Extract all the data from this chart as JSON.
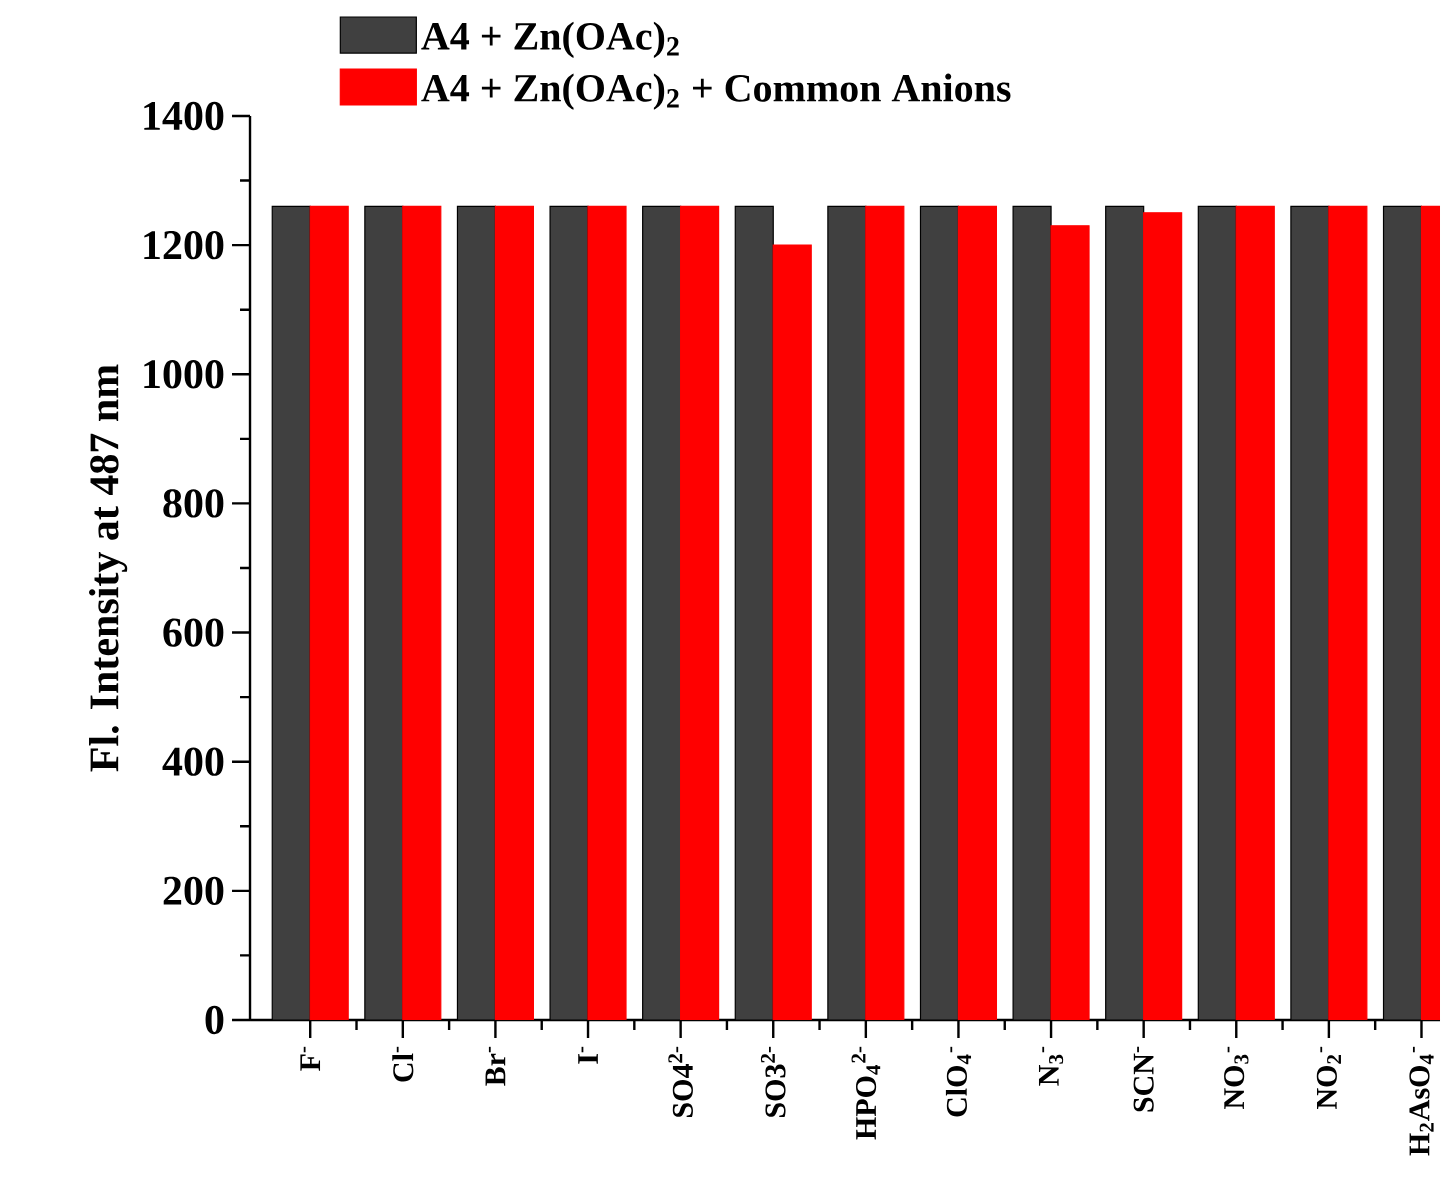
{
  "chart_data": {
    "type": "bar",
    "ylabel": "Fl. Intensity at 487 nm",
    "categories": [
      "F$^{-}$",
      "Cl$^{-}$",
      "Br$^{-}$",
      "I$^{-}$",
      "SO4$^{2-}$",
      "SO3$^{2-}$",
      "HPO$_{4}$$^{2-}$",
      "ClO$_{4}$$^{-}$",
      "N$_{3}$$^{-}$",
      "SCN$^{-}$",
      "NO$_{3}$$^{-}$",
      "NO$_{2}$$^{-}$",
      "H$_{2}$AsO$_{4}$$^{-}$"
    ],
    "series": [
      {
        "name": "A4 + Zn(OAc)$_{2}$",
        "color": "#404040",
        "values": [
          1260,
          1260,
          1260,
          1260,
          1260,
          1260,
          1260,
          1260,
          1260,
          1260,
          1260,
          1260,
          1260
        ]
      },
      {
        "name": "A4 + Zn(OAc)$_{2}$ + Common Anions",
        "color": "#ff0000",
        "values": [
          1260,
          1260,
          1260,
          1260,
          1260,
          1200,
          1260,
          1260,
          1230,
          1250,
          1260,
          1260,
          1260
        ]
      }
    ],
    "ylim": [
      0,
      1400
    ],
    "yticks": [
      0,
      200,
      400,
      600,
      800,
      1000,
      1200,
      1400
    ],
    "legend": "top"
  }
}
